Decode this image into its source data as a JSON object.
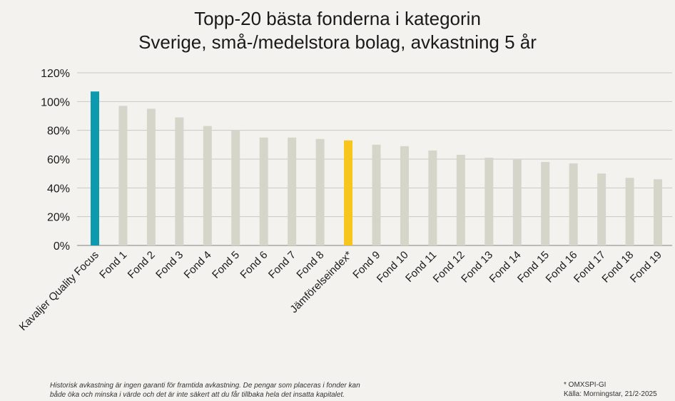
{
  "chart_data": {
    "type": "bar",
    "title": "Topp-20 bästa fonderna i kategorin",
    "subtitle": "Sverige, små-/medelstora bolag, avkastning 5 år",
    "categories": [
      "Kavaljer Quality Focus",
      "Fond 1",
      "Fond 2",
      "Fond 3",
      "Fond 4",
      "Fond 5",
      "Fond 6",
      "Fond 7",
      "Fond 8",
      "Jämförelseindex*",
      "Fond 9",
      "Fond 10",
      "Fond 11",
      "Fond 12",
      "Fond 13",
      "Fond 14",
      "Fond 15",
      "Fond 16",
      "Fond 17",
      "Fond 18",
      "Fond 19"
    ],
    "values": [
      107,
      97,
      95,
      89,
      83,
      80,
      75,
      75,
      74,
      73,
      70,
      69,
      66,
      63,
      61,
      60,
      58,
      57,
      50,
      47,
      46
    ],
    "yticks": [
      "0%",
      "20%",
      "40%",
      "60%",
      "80%",
      "100%",
      "120%"
    ],
    "ylim": [
      0,
      120
    ],
    "grid": true,
    "colors": {
      "highlight": "#0e9aae",
      "benchmark": "#f7c51b",
      "default": "#d5d5c9",
      "grid": "#c9c9c2",
      "axis": "#999999"
    },
    "highlight_index": 0,
    "benchmark_index": 9
  },
  "footer": {
    "disclaimer_line1": "Historisk avkastning är ingen garanti för framtida avkastning. De pengar som placeras i fonder kan",
    "disclaimer_line2": "både öka och minska i värde och det är inte säkert att du får tillbaka hela det insatta kapitalet.",
    "note": "* OMXSPI-GI",
    "source": "Källa: Morningstar, 21/2-2025"
  }
}
